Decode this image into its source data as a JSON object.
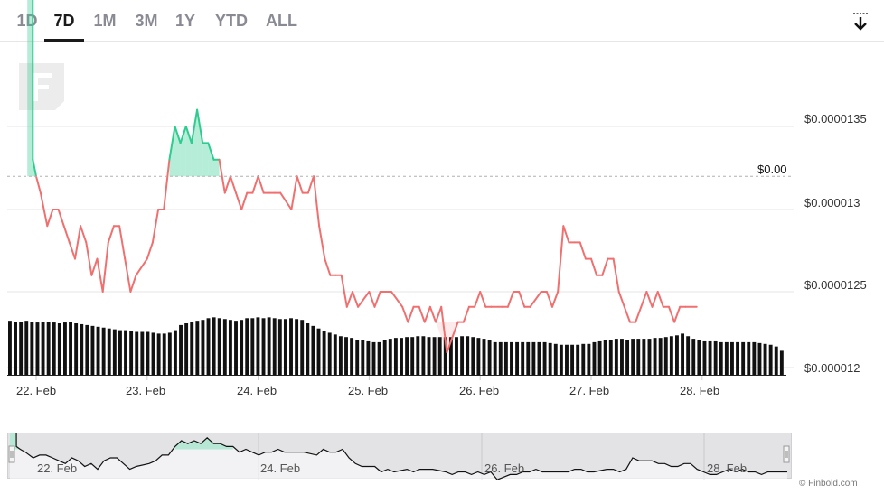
{
  "range_selector": {
    "buttons": [
      {
        "label": "1D",
        "active": false
      },
      {
        "label": "7D",
        "active": true
      },
      {
        "label": "1M",
        "active": false
      },
      {
        "label": "3M",
        "active": false
      },
      {
        "label": "1Y",
        "active": false
      },
      {
        "label": "YTD",
        "active": false
      },
      {
        "label": "ALL",
        "active": false
      }
    ]
  },
  "icons": {
    "download": "download-icon",
    "logo": "finbold-logo"
  },
  "chart_data": {
    "type": "area",
    "title": "",
    "xlabel": "",
    "ylabel": "",
    "x_ticks": [
      "22. Feb",
      "23. Feb",
      "24. Feb",
      "25. Feb",
      "26. Feb",
      "27. Feb",
      "28. Feb"
    ],
    "y_ticks": [
      "$0.000012",
      "$0.0000125",
      "$0.000013",
      "$0.0000135"
    ],
    "ylim": [
      1.2e-05,
      1.37e-05
    ],
    "xlim_days": [
      21.9,
      28.7
    ],
    "baseline_value": 1.32e-06,
    "baseline_label": "$0.00",
    "colors": {
      "above": "#2ecc8f",
      "below": "#f07070",
      "volume": "#111111"
    },
    "grid": true,
    "legend": "none",
    "price": [
      [
        21.92,
        1.32e-05
      ],
      [
        21.97,
        1.33e-06
      ],
      [
        22.0,
        1.32e-06
      ],
      [
        22.04,
        1.31e-06
      ],
      [
        22.1,
        1.29e-06
      ],
      [
        22.15,
        1.3e-06
      ],
      [
        22.2,
        1.3e-06
      ],
      [
        22.25,
        1.29e-06
      ],
      [
        22.3,
        1.28e-06
      ],
      [
        22.35,
        1.27e-06
      ],
      [
        22.4,
        1.29e-06
      ],
      [
        22.45,
        1.28e-06
      ],
      [
        22.5,
        1.26e-06
      ],
      [
        22.55,
        1.27e-06
      ],
      [
        22.6,
        1.25e-06
      ],
      [
        22.65,
        1.28e-06
      ],
      [
        22.7,
        1.29e-06
      ],
      [
        22.75,
        1.29e-06
      ],
      [
        22.8,
        1.27e-06
      ],
      [
        22.85,
        1.25e-06
      ],
      [
        22.9,
        1.26e-06
      ],
      [
        23.0,
        1.27e-06
      ],
      [
        23.05,
        1.28e-06
      ],
      [
        23.1,
        1.3e-06
      ],
      [
        23.15,
        1.3e-06
      ],
      [
        23.2,
        1.33e-06
      ],
      [
        23.25,
        1.35e-06
      ],
      [
        23.3,
        1.34e-06
      ],
      [
        23.35,
        1.35e-06
      ],
      [
        23.4,
        1.34e-06
      ],
      [
        23.45,
        1.36e-06
      ],
      [
        23.5,
        1.34e-06
      ],
      [
        23.55,
        1.34e-06
      ],
      [
        23.6,
        1.33e-06
      ],
      [
        23.65,
        1.33e-06
      ],
      [
        23.7,
        1.31e-06
      ],
      [
        23.75,
        1.32e-06
      ],
      [
        23.8,
        1.31e-06
      ],
      [
        23.85,
        1.3e-06
      ],
      [
        23.9,
        1.31e-06
      ],
      [
        23.95,
        1.31e-06
      ],
      [
        24.0,
        1.32e-06
      ],
      [
        24.05,
        1.31e-06
      ],
      [
        24.1,
        1.31e-06
      ],
      [
        24.15,
        1.31e-06
      ],
      [
        24.2,
        1.31e-06
      ],
      [
        24.3,
        1.3e-06
      ],
      [
        24.35,
        1.32e-06
      ],
      [
        24.4,
        1.31e-06
      ],
      [
        24.45,
        1.31e-06
      ],
      [
        24.5,
        1.32e-06
      ],
      [
        24.55,
        1.29e-06
      ],
      [
        24.6,
        1.27e-06
      ],
      [
        24.65,
        1.26e-06
      ],
      [
        24.7,
        1.26e-06
      ],
      [
        24.75,
        1.26e-06
      ],
      [
        24.8,
        1.24e-06
      ],
      [
        24.85,
        1.25e-06
      ],
      [
        24.9,
        1.24e-06
      ],
      [
        25.0,
        1.25e-06
      ],
      [
        25.05,
        1.24e-06
      ],
      [
        25.1,
        1.25e-06
      ],
      [
        25.15,
        1.25e-06
      ],
      [
        25.2,
        1.25e-06
      ],
      [
        25.3,
        1.24e-06
      ],
      [
        25.35,
        1.23e-06
      ],
      [
        25.4,
        1.24e-06
      ],
      [
        25.45,
        1.24e-06
      ],
      [
        25.5,
        1.23e-06
      ],
      [
        25.55,
        1.24e-06
      ],
      [
        25.6,
        1.23e-06
      ],
      [
        25.65,
        1.24e-06
      ],
      [
        25.7,
        1.21e-06
      ],
      [
        25.75,
        1.22e-06
      ],
      [
        25.8,
        1.23e-06
      ],
      [
        25.85,
        1.23e-06
      ],
      [
        25.9,
        1.24e-06
      ],
      [
        25.95,
        1.24e-06
      ],
      [
        26.0,
        1.25e-06
      ],
      [
        26.05,
        1.24e-06
      ],
      [
        26.1,
        1.24e-06
      ],
      [
        26.2,
        1.24e-06
      ],
      [
        26.25,
        1.24e-06
      ],
      [
        26.3,
        1.25e-06
      ],
      [
        26.35,
        1.25e-06
      ],
      [
        26.4,
        1.24e-06
      ],
      [
        26.45,
        1.24e-06
      ],
      [
        26.55,
        1.25e-06
      ],
      [
        26.6,
        1.25e-06
      ],
      [
        26.65,
        1.24e-06
      ],
      [
        26.7,
        1.25e-06
      ],
      [
        26.75,
        1.29e-06
      ],
      [
        26.8,
        1.28e-06
      ],
      [
        26.85,
        1.28e-06
      ],
      [
        26.9,
        1.28e-06
      ],
      [
        26.95,
        1.27e-06
      ],
      [
        27.0,
        1.27e-06
      ],
      [
        27.05,
        1.26e-06
      ],
      [
        27.1,
        1.26e-06
      ],
      [
        27.15,
        1.27e-06
      ],
      [
        27.2,
        1.27e-06
      ],
      [
        27.25,
        1.25e-06
      ],
      [
        27.3,
        1.24e-06
      ],
      [
        27.35,
        1.23e-06
      ],
      [
        27.4,
        1.23e-06
      ],
      [
        27.45,
        1.24e-06
      ],
      [
        27.5,
        1.25e-06
      ],
      [
        27.55,
        1.24e-06
      ],
      [
        27.6,
        1.25e-06
      ],
      [
        27.65,
        1.24e-06
      ],
      [
        27.7,
        1.24e-06
      ],
      [
        27.75,
        1.23e-06
      ],
      [
        27.8,
        1.24e-06
      ],
      [
        27.85,
        1.24e-06
      ],
      [
        27.9,
        1.24e-06
      ],
      [
        27.95,
        1.24e-06
      ]
    ],
    "volume": [
      0.63,
      0.62,
      0.62,
      0.63,
      0.62,
      0.61,
      0.62,
      0.62,
      0.61,
      0.6,
      0.61,
      0.62,
      0.6,
      0.59,
      0.58,
      0.57,
      0.56,
      0.55,
      0.54,
      0.53,
      0.52,
      0.52,
      0.51,
      0.5,
      0.5,
      0.5,
      0.49,
      0.48,
      0.48,
      0.49,
      0.52,
      0.58,
      0.6,
      0.62,
      0.63,
      0.64,
      0.66,
      0.67,
      0.66,
      0.65,
      0.64,
      0.63,
      0.64,
      0.66,
      0.66,
      0.67,
      0.66,
      0.67,
      0.66,
      0.65,
      0.65,
      0.66,
      0.65,
      0.64,
      0.6,
      0.57,
      0.54,
      0.51,
      0.49,
      0.47,
      0.45,
      0.44,
      0.43,
      0.41,
      0.4,
      0.39,
      0.38,
      0.38,
      0.4,
      0.42,
      0.43,
      0.43,
      0.44,
      0.44,
      0.45,
      0.45,
      0.44,
      0.44,
      0.44,
      0.44,
      0.44,
      0.44,
      0.45,
      0.45,
      0.44,
      0.43,
      0.42,
      0.4,
      0.38,
      0.38,
      0.38,
      0.38,
      0.38,
      0.38,
      0.38,
      0.38,
      0.38,
      0.38,
      0.37,
      0.36,
      0.35,
      0.35,
      0.35,
      0.35,
      0.36,
      0.36,
      0.38,
      0.39,
      0.4,
      0.41,
      0.42,
      0.42,
      0.41,
      0.42,
      0.42,
      0.42,
      0.42,
      0.43,
      0.43,
      0.44,
      0.45,
      0.46,
      0.48,
      0.45,
      0.42,
      0.4,
      0.39,
      0.39,
      0.39,
      0.38,
      0.38,
      0.38,
      0.38,
      0.38,
      0.38,
      0.38,
      0.37,
      0.36,
      0.35,
      0.33,
      0.28
    ],
    "navigator_x_ticks": [
      "22. Feb",
      "24. Feb",
      "26. Feb",
      "28. Feb"
    ]
  },
  "credit": "© Finbold.com"
}
